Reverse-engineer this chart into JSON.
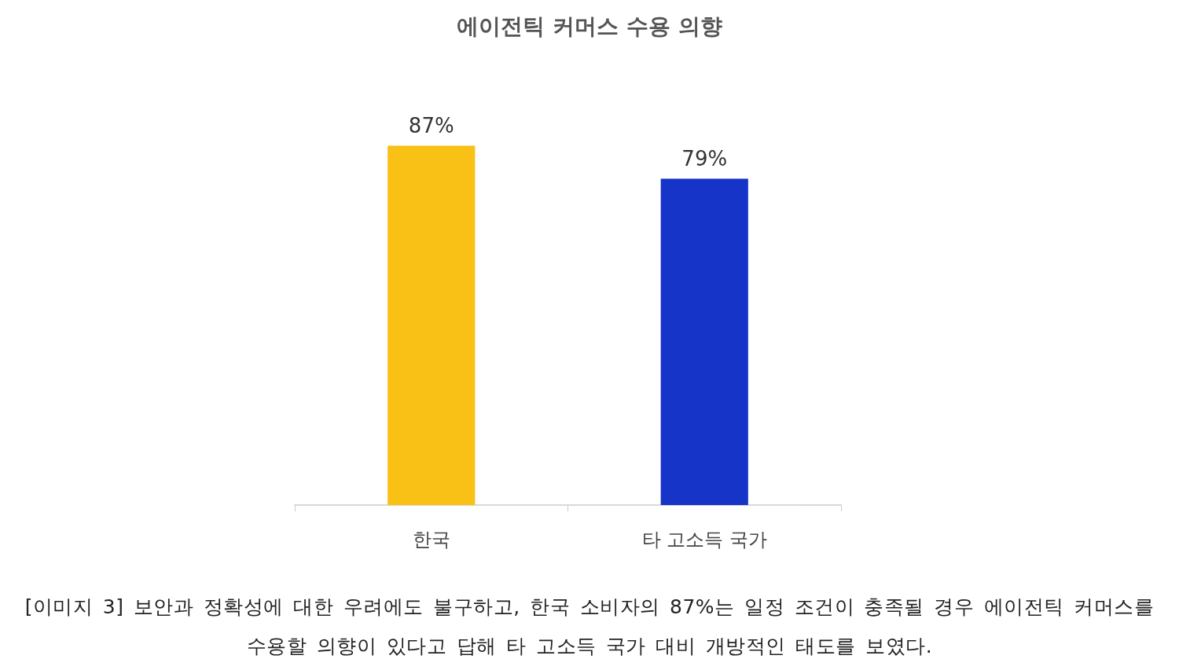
{
  "chart_data": {
    "type": "bar",
    "title": "에이전틱 커머스 수용 의향",
    "categories": [
      "한국",
      "타 고소득 국가"
    ],
    "values": [
      87,
      79
    ],
    "colors": [
      "#f9c016",
      "#1634c8"
    ],
    "value_labels": [
      "87%",
      "79%"
    ],
    "annotations": [
      "[이미지 3] 보안과 정확성에 대한 우려에도 불구하고, 한국 소비자의 87%는 일정 조건이 충족될 경우 에이전틱 커머스를 수용할 의향이 있다고 답해 타 고소득 국가 대비 개방적인 태도를 보였다."
    ]
  }
}
